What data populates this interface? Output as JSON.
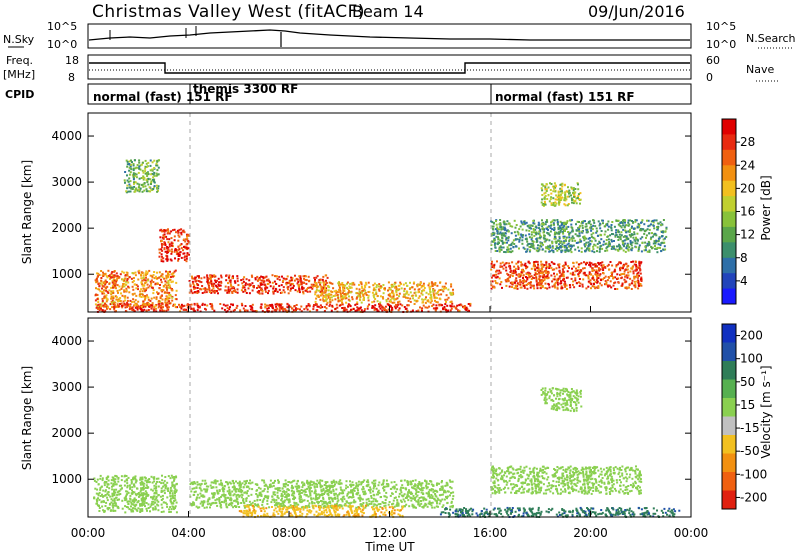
{
  "header": {
    "station": "Christmas Valley West (fitACF)",
    "beam": "Beam 14",
    "date": "09/Jun/2016"
  },
  "strip_panels": {
    "nsky": {
      "left_label": "N.Sky",
      "right_label": "N.Search",
      "ticks_left": [
        "10^5",
        "10^0"
      ],
      "ticks_right": [
        "10^5",
        "10^0"
      ]
    },
    "freq": {
      "left_label": "Freq.",
      "unit": "[MHz]",
      "right_label": "Nave",
      "ticks_left": [
        "18",
        "8"
      ],
      "ticks_right": [
        "60",
        "0"
      ]
    },
    "cpid": {
      "label": "CPID",
      "segments": [
        {
          "name": "normal (fast) 151 RF",
          "start_hour": 0
        },
        {
          "name": "themis 3300 RF",
          "start_hour": 4
        },
        {
          "name": "normal (fast) 151 RF",
          "start_hour": 16
        }
      ]
    }
  },
  "chart_data": [
    {
      "type": "heatmap",
      "title": "",
      "xlabel": "Time UT",
      "ylabel": "Slant Range [km]",
      "x_range_hours": [
        0,
        24
      ],
      "xticks": [
        "00:00",
        "04:00",
        "08:00",
        "12:00",
        "16:00",
        "20:00",
        "00:00"
      ],
      "ylim": [
        180,
        4500
      ],
      "yticks": [
        1000,
        2000,
        3000,
        4000
      ],
      "colorbar": {
        "label": "Power [dB]",
        "ticks": [
          "4",
          "8",
          "12",
          "16",
          "20",
          "24",
          "28"
        ],
        "colors": [
          "#1a1aff",
          "#2244bb",
          "#2e6fa8",
          "#3c8f6c",
          "#5aa64a",
          "#88c23a",
          "#c0d030",
          "#f2c020",
          "#f29010",
          "#f06010",
          "#e82a10",
          "#e00000"
        ]
      },
      "regions": [
        {
          "name": "band_low",
          "t": [
            0.3,
            15.2
          ],
          "r": [
            200,
            380
          ],
          "value": 27
        },
        {
          "name": "main_echo",
          "t": [
            4.0,
            9.5
          ],
          "r": [
            600,
            1000
          ],
          "value": 26
        },
        {
          "name": "main_echo_ext",
          "t": [
            9.0,
            14.5
          ],
          "r": [
            400,
            850
          ],
          "value": 20
        },
        {
          "name": "early_patch",
          "t": [
            0.2,
            3.5
          ],
          "r": [
            300,
            1100
          ],
          "value": 22
        },
        {
          "name": "patch_1600",
          "t": [
            2.8,
            4.0
          ],
          "r": [
            1300,
            2000
          ],
          "value": 27
        },
        {
          "name": "patch_3200",
          "t": [
            1.4,
            2.8
          ],
          "r": [
            2800,
            3500
          ],
          "value": 12
        },
        {
          "name": "evening_arc",
          "t": [
            16.0,
            22.0
          ],
          "r": [
            700,
            1300
          ],
          "value": 25
        },
        {
          "name": "evening_bands",
          "t": [
            16.0,
            23.0
          ],
          "r": [
            1500,
            2200
          ],
          "value": 10
        },
        {
          "name": "patch_2800",
          "t": [
            18.0,
            19.6
          ],
          "r": [
            2500,
            3000
          ],
          "value": 15
        }
      ]
    },
    {
      "type": "heatmap",
      "title": "",
      "xlabel": "Time UT",
      "ylabel": "Slant Range [km]",
      "x_range_hours": [
        0,
        24
      ],
      "xticks": [
        "00:00",
        "04:00",
        "08:00",
        "12:00",
        "16:00",
        "20:00",
        "00:00"
      ],
      "ylim": [
        180,
        4500
      ],
      "yticks": [
        1000,
        2000,
        3000,
        4000
      ],
      "colorbar": {
        "label": "Velocity [m s⁻¹]",
        "ticks": [
          "200",
          "100",
          "50",
          "15",
          "-15",
          "-50",
          "-100",
          "-200"
        ],
        "colors": [
          "#1030c0",
          "#2050a8",
          "#2f7d58",
          "#56b050",
          "#8ad050",
          "#c0c0c0",
          "#f2c020",
          "#f29010",
          "#f06010",
          "#e02010"
        ]
      },
      "regions": [
        {
          "name": "ground_scatter_main",
          "t": [
            4.0,
            14.5
          ],
          "r": [
            400,
            1000
          ],
          "value": 0
        },
        {
          "name": "ground_scatter_early",
          "t": [
            0.2,
            3.5
          ],
          "r": [
            300,
            1100
          ],
          "value": 0
        },
        {
          "name": "evening_gs",
          "t": [
            16.0,
            22.0
          ],
          "r": [
            700,
            1300
          ],
          "value": 0
        },
        {
          "name": "low_negative",
          "t": [
            6.0,
            12.5
          ],
          "r": [
            200,
            450
          ],
          "value": -40
        },
        {
          "name": "low_positive",
          "t": [
            14.0,
            23.5
          ],
          "r": [
            200,
            400
          ],
          "value": 40
        },
        {
          "name": "patch_2800",
          "t": [
            18.0,
            19.6
          ],
          "r": [
            2500,
            3000
          ],
          "value": 0
        }
      ]
    }
  ]
}
